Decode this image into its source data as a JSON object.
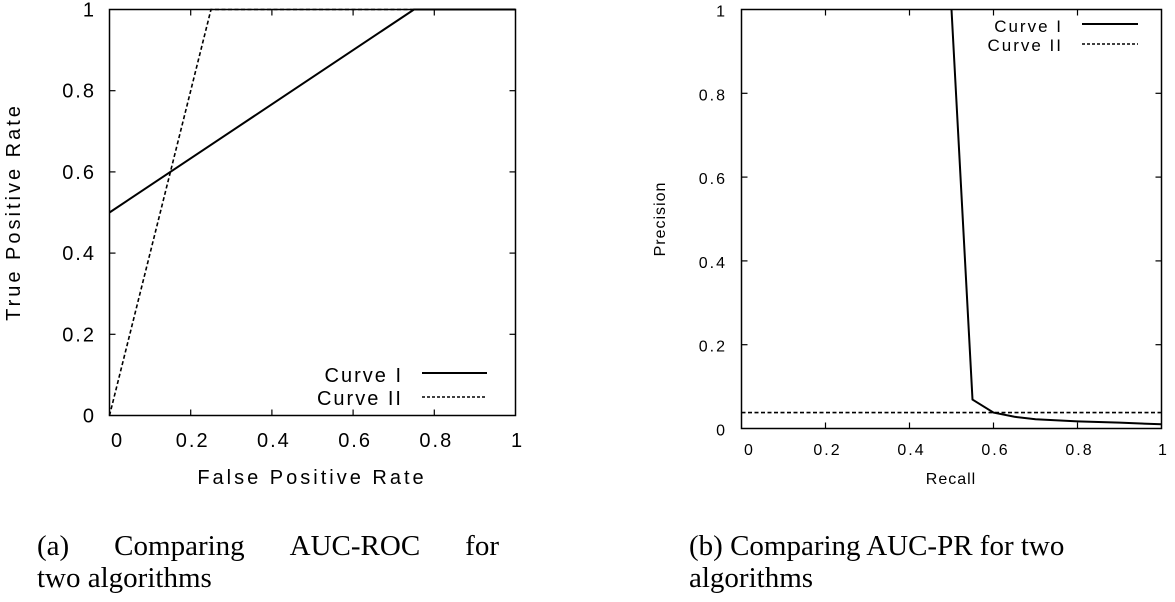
{
  "chart_data": [
    {
      "type": "line",
      "id": "roc",
      "title": "",
      "xlabel": "False Positive Rate",
      "ylabel": "True Positive Rate",
      "xlim": [
        0,
        1
      ],
      "ylim": [
        0,
        1
      ],
      "xticks": [
        "0",
        "0.2",
        "0.4",
        "0.6",
        "0.8",
        "1"
      ],
      "yticks": [
        "0",
        "0.2",
        "0.4",
        "0.6",
        "0.8",
        "1"
      ],
      "grid": false,
      "legend_position": "lower right",
      "series": [
        {
          "name": "Curve I",
          "style": "solid",
          "x": [
            0,
            0.75,
            1
          ],
          "y": [
            0.5,
            1,
            1
          ]
        },
        {
          "name": "Curve II",
          "style": "dashed",
          "x": [
            0,
            0.25,
            1
          ],
          "y": [
            0,
            1,
            1
          ]
        }
      ]
    },
    {
      "type": "line",
      "id": "pr",
      "title": "",
      "xlabel": "Recall",
      "ylabel": "Precision",
      "xlim": [
        0,
        1
      ],
      "ylim": [
        0,
        1
      ],
      "xticks": [
        "0",
        "0.2",
        "0.4",
        "0.6",
        "0.8",
        "1"
      ],
      "yticks": [
        "0",
        "0.2",
        "0.4",
        "0.6",
        "0.8",
        "1"
      ],
      "grid": false,
      "legend_position": "upper right",
      "series": [
        {
          "name": "Curve I",
          "style": "solid",
          "x": [
            0.5,
            0.55,
            0.6,
            0.65,
            0.7,
            0.8,
            0.9,
            1.0
          ],
          "y": [
            1.0,
            0.069,
            0.038,
            0.028,
            0.022,
            0.017,
            0.014,
            0.01
          ]
        },
        {
          "name": "Curve II",
          "style": "dashed",
          "x": [
            0,
            1
          ],
          "y": [
            0.038,
            0.038
          ]
        }
      ]
    }
  ],
  "figure": {
    "roc": {
      "xlabel": "False Positive Rate",
      "ylabel": "True Positive Rate",
      "ticks": [
        "0",
        "0.2",
        "0.4",
        "0.6",
        "0.8",
        "1"
      ],
      "legend": [
        "Curve I",
        "Curve II"
      ]
    },
    "pr": {
      "xlabel": "Recall",
      "ylabel": "Precision",
      "ticks": [
        "0",
        "0.2",
        "0.4",
        "0.6",
        "0.8",
        "1"
      ],
      "legend": [
        "Curve I",
        "Curve II"
      ]
    }
  },
  "captions": {
    "a_line1": [
      "(a)",
      "Comparing",
      "AUC-ROC",
      "for"
    ],
    "a_line2": "two algorithms",
    "b_line1": "(b) Comparing AUC-PR for two",
    "b_line2": "algorithms"
  }
}
